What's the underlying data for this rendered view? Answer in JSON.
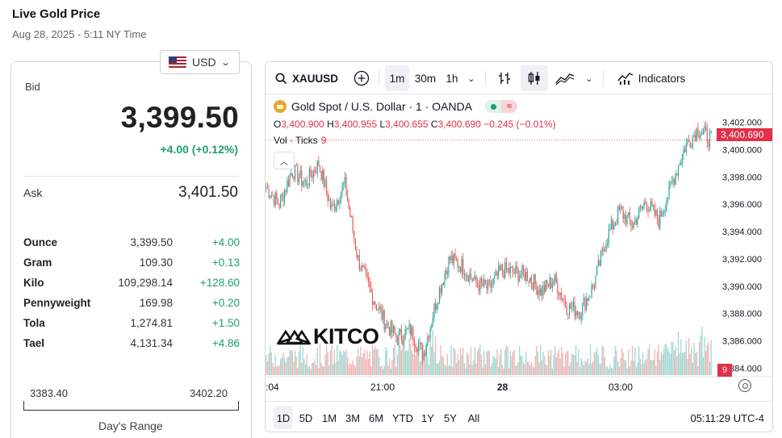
{
  "header": {
    "title": "Live Gold Price",
    "date": "Aug 28, 2025 - 5:11 NY Time"
  },
  "currency": {
    "selected": "USD"
  },
  "quote": {
    "bid_label": "Bid",
    "bid": "3,399.50",
    "bid_change": "+4.00 (+0.12%)",
    "ask_label": "Ask",
    "ask": "3,401.50"
  },
  "units": [
    {
      "name": "Ounce",
      "price": "3,399.50",
      "change": "+4.00"
    },
    {
      "name": "Gram",
      "price": "109.30",
      "change": "+0.13"
    },
    {
      "name": "Kilo",
      "price": "109,298.14",
      "change": "+128.60"
    },
    {
      "name": "Pennyweight",
      "price": "169.98",
      "change": "+0.20"
    },
    {
      "name": "Tola",
      "price": "1,274.81",
      "change": "+1.50"
    },
    {
      "name": "Tael",
      "price": "4,131.34",
      "change": "+4.86"
    }
  ],
  "days_range": {
    "low": "3383.40",
    "high": "3402.20",
    "label": "Day's Range"
  },
  "chart_toolbar": {
    "symbol": "XAUUSD",
    "intervals": [
      "1m",
      "30m",
      "1h"
    ],
    "active_interval": "1m",
    "indicators_label": "Indicators"
  },
  "chart_legend": {
    "title": "Gold Spot / U.S. Dollar · 1 · OANDA",
    "open": "3,400.900",
    "high": "3,400.955",
    "low": "3,400.655",
    "close": "3,400.690",
    "change": "−0.245 (−0.01%)",
    "vol_label": "Vol · Ticks",
    "vol_value": "9"
  },
  "brand": {
    "logo_text": "KITCO"
  },
  "bottom_bar": {
    "ranges": [
      "1D",
      "5D",
      "1M",
      "3M",
      "6M",
      "YTD",
      "1Y",
      "5Y",
      "All"
    ],
    "active_range": "1D",
    "clock": "05:11:29 UTC-4"
  },
  "colors": {
    "up": "#1e9f6a",
    "down": "#e0304a",
    "tv_up": "#26a69a",
    "tv_down": "#ef5350"
  },
  "chart_data": {
    "type": "candlestick",
    "title": "Gold Spot / U.S. Dollar · 1 · OANDA",
    "y_ticks": [
      "3,402.000",
      "3,400.000",
      "3,398.000",
      "3,396.000",
      "3,394.000",
      "3,392.000",
      "3,390.000",
      "3,388.000",
      "3,386.000",
      "3,384.000"
    ],
    "ylim": [
      3383.0,
      3403.0
    ],
    "x_ticks": [
      ":04",
      "21:00",
      "28",
      "03:00"
    ],
    "last_price": "3,400.690",
    "vol_last": "9",
    "close_path": [
      [
        "18:04",
        3397.2
      ],
      [
        "18:20",
        3396.0
      ],
      [
        "18:40",
        3398.5
      ],
      [
        "19:00",
        3397.5
      ],
      [
        "19:20",
        3399.0
      ],
      [
        "19:40",
        3395.6
      ],
      [
        "20:00",
        3397.5
      ],
      [
        "20:20",
        3392.0
      ],
      [
        "20:40",
        3389.5
      ],
      [
        "21:00",
        3387.5
      ],
      [
        "21:20",
        3386.2
      ],
      [
        "21:40",
        3386.8
      ],
      [
        "22:00",
        3385.0
      ],
      [
        "22:20",
        3389.0
      ],
      [
        "22:40",
        3392.0
      ],
      [
        "23:00",
        3391.5
      ],
      [
        "23:20",
        3390.2
      ],
      [
        "23:40",
        3389.8
      ],
      [
        "00:00",
        3391.2
      ],
      [
        "00:20",
        3391.0
      ],
      [
        "00:40",
        3390.8
      ],
      [
        "01:00",
        3389.6
      ],
      [
        "01:20",
        3390.5
      ],
      [
        "01:40",
        3388.5
      ],
      [
        "02:00",
        3388.2
      ],
      [
        "02:20",
        3390.0
      ],
      [
        "02:40",
        3393.5
      ],
      [
        "03:00",
        3395.5
      ],
      [
        "03:20",
        3394.5
      ],
      [
        "03:40",
        3396.2
      ],
      [
        "04:00",
        3394.8
      ],
      [
        "04:20",
        3397.5
      ],
      [
        "04:40",
        3400.2
      ],
      [
        "05:00",
        3401.5
      ],
      [
        "05:11",
        3400.69
      ]
    ]
  }
}
